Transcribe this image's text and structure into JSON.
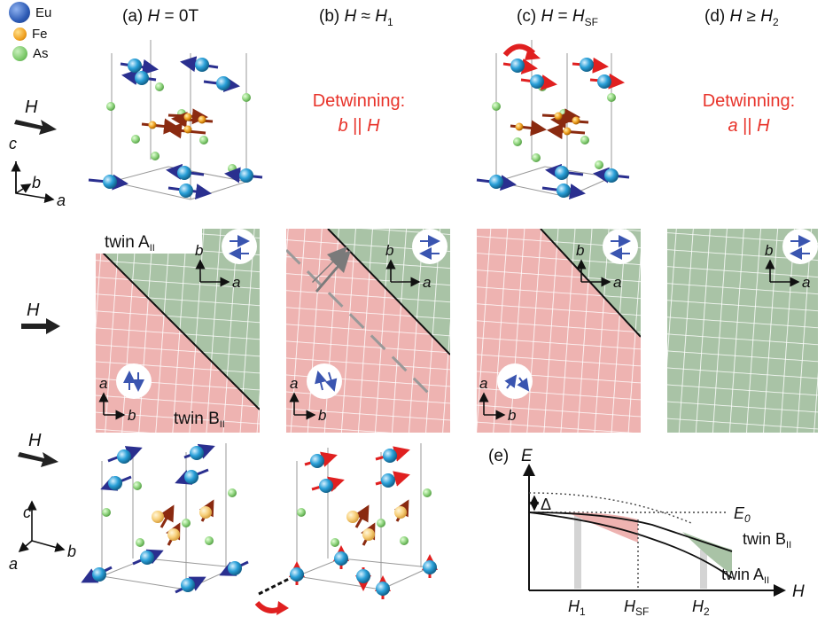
{
  "legend": [
    {
      "label": "Eu",
      "color": "#2d5bb5"
    },
    {
      "label": "Fe",
      "color": "#f0a020"
    },
    {
      "label": "As",
      "color": "#7cc96a"
    }
  ],
  "headers": [
    {
      "prefix": "(a) ",
      "var": "H",
      "eq": " = 0T",
      "sub": ""
    },
    {
      "prefix": "(b) ",
      "var": "H",
      "eq": " ≈ ",
      "var2": "H",
      "sub": "1"
    },
    {
      "prefix": "(c) ",
      "var": "H",
      "eq": " = ",
      "var2": "H",
      "sub": "SF"
    },
    {
      "prefix": "(d) ",
      "var": "H",
      "eq": " ≥ ",
      "var2": "H",
      "sub": "2"
    }
  ],
  "detwin_b": {
    "title": "Detwinning:",
    "axis": "b",
    "rel": " || ",
    "field": "H"
  },
  "detwin_a": {
    "title": "Detwinning:",
    "axis": "a",
    "rel": " || ",
    "field": "H"
  },
  "field_label": "H",
  "axes": {
    "c": "c",
    "b": "b",
    "a": "a"
  },
  "twin_a_label": "twin A",
  "twin_b_label": "twin B",
  "twin_sub": "II",
  "panel_e": {
    "label": "(e)",
    "y_label": "E",
    "x_label": "H",
    "delta": "Δ",
    "e0": "E",
    "e0_sub": "0",
    "h1": "H",
    "h1_sub": "1",
    "hsf": "H",
    "hsf_sub": "SF",
    "h2": "H",
    "h2_sub": "2",
    "twin_b": "twin B",
    "twin_a": "twin A",
    "twin_sub": "II"
  },
  "colors": {
    "red": "#e8332a",
    "pink": "#eeb3b1",
    "green": "#a9c3a6",
    "arrow_blue": "#2a2f8f",
    "eu": "#2aa0d8"
  }
}
